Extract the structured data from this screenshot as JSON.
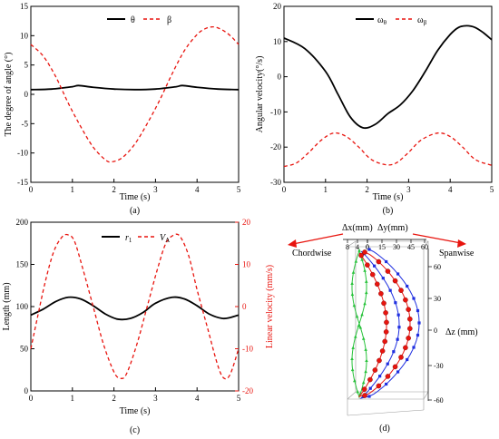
{
  "colors": {
    "black": "#000000",
    "red": "#e8140e",
    "blue": "#1f2fe0",
    "green": "#27c23a"
  },
  "panel_labels": {
    "a": "(a)",
    "b": "(b)",
    "c": "(c)",
    "d": "(d)"
  },
  "chart_data": [
    {
      "id": "a",
      "type": "line",
      "xlabel": "Time (s)",
      "ylabel": "The degree of angle (°)",
      "xlim": [
        0,
        5
      ],
      "ylim": [
        -15,
        15
      ],
      "xticks": [
        0,
        1,
        2,
        3,
        4,
        5
      ],
      "yticks": [
        -15,
        -10,
        -5,
        0,
        5,
        10,
        15
      ],
      "legend_position": "top-center",
      "series": [
        {
          "name": "θ",
          "color": "#000000",
          "dash": "solid",
          "x": [
            0,
            0.5,
            1.0,
            1.15,
            1.5,
            2.0,
            2.5,
            3.0,
            3.5,
            3.65,
            4.0,
            4.5,
            5.0
          ],
          "y": [
            0.8,
            0.9,
            1.3,
            1.5,
            1.2,
            0.9,
            0.8,
            0.9,
            1.3,
            1.5,
            1.2,
            0.9,
            0.8
          ]
        },
        {
          "name": "β",
          "color": "#e8140e",
          "dash": "dashed",
          "x": [
            0,
            0.3,
            0.6,
            0.9,
            1.2,
            1.5,
            1.8,
            1.95,
            2.2,
            2.5,
            2.8,
            3.1,
            3.4,
            3.7,
            4.0,
            4.2,
            4.4,
            4.6,
            4.8,
            5.0
          ],
          "y": [
            8.5,
            6.5,
            3.0,
            -1.5,
            -5.5,
            -9.0,
            -11.2,
            -11.5,
            -10.8,
            -8.5,
            -5.0,
            -1.0,
            3.5,
            7.5,
            10.2,
            11.2,
            11.5,
            11.0,
            10.0,
            8.5
          ]
        }
      ]
    },
    {
      "id": "b",
      "type": "line",
      "xlabel": "Time (s)",
      "ylabel": "Angular velocity(°/s)",
      "xlim": [
        0,
        5
      ],
      "ylim": [
        -30,
        20
      ],
      "xticks": [
        0,
        1,
        2,
        3,
        4,
        5
      ],
      "yticks": [
        -30,
        -20,
        -10,
        0,
        10,
        20
      ],
      "legend_position": "top-right",
      "series": [
        {
          "name": "ωθ",
          "name_main": "ω",
          "name_sub": "θ",
          "color": "#000000",
          "dash": "solid",
          "x": [
            0,
            0.5,
            1.0,
            1.3,
            1.6,
            1.9,
            2.2,
            2.5,
            2.8,
            3.1,
            3.4,
            3.7,
            4.0,
            4.2,
            4.4,
            4.6,
            4.8,
            5.0
          ],
          "y": [
            11.0,
            8.0,
            1.5,
            -5.0,
            -11.5,
            -14.5,
            -13.5,
            -10.5,
            -8.0,
            -4.0,
            1.5,
            7.5,
            12.0,
            14.0,
            14.5,
            14.0,
            12.5,
            10.5
          ]
        },
        {
          "name": "ωβ",
          "name_main": "ω",
          "name_sub": "β",
          "color": "#e8140e",
          "dash": "dashed",
          "x": [
            0,
            0.3,
            0.6,
            0.9,
            1.2,
            1.5,
            1.8,
            2.1,
            2.45,
            2.7,
            3.0,
            3.3,
            3.7,
            4.0,
            4.3,
            4.6,
            4.95,
            5.0
          ],
          "y": [
            -25.5,
            -24.5,
            -21.5,
            -18.0,
            -16.0,
            -17.0,
            -20.0,
            -23.5,
            -25.0,
            -24.5,
            -21.5,
            -18.0,
            -16.0,
            -17.0,
            -20.0,
            -23.5,
            -25.0,
            -25.0
          ]
        }
      ]
    },
    {
      "id": "c",
      "type": "line",
      "xlabel": "Time (s)",
      "ylabel": "Length (mm)",
      "ylabel_right": "Linear velocity (mm/s)",
      "xlim": [
        0,
        5
      ],
      "ylim": [
        0,
        200
      ],
      "ylim_right": [
        -20,
        20
      ],
      "xticks": [
        0,
        1,
        2,
        3,
        4,
        5
      ],
      "yticks": [
        0,
        50,
        100,
        150,
        200
      ],
      "yticks_right": [
        -20,
        -10,
        0,
        10,
        20
      ],
      "legend_position": "top-center",
      "series": [
        {
          "name": "r1",
          "name_main": "r",
          "name_sub": "1",
          "axis": "left",
          "color": "#000000",
          "dash": "solid",
          "x": [
            0,
            0.3,
            0.6,
            0.9,
            1.2,
            1.5,
            1.8,
            2.1,
            2.4,
            2.7,
            3.0,
            3.4,
            3.7,
            4.0,
            4.3,
            4.6,
            4.8,
            5.0
          ],
          "y": [
            90,
            97,
            106,
            111,
            109,
            101,
            91,
            85,
            86,
            93,
            104,
            111,
            109,
            101,
            91,
            86,
            87,
            90
          ]
        },
        {
          "name": "VA",
          "name_main": "V",
          "name_sub": "A",
          "axis": "right",
          "color": "#e8140e",
          "dash": "dashed",
          "x": [
            0,
            0.15,
            0.35,
            0.55,
            0.75,
            0.9,
            1.05,
            1.25,
            1.5,
            1.75,
            2.0,
            2.15,
            2.3,
            2.55,
            2.8,
            3.05,
            3.25,
            3.45,
            3.6,
            3.8,
            4.0,
            4.25,
            4.5,
            4.65,
            4.8,
            5.0
          ],
          "y": [
            -10,
            -3,
            6,
            13,
            16.5,
            17,
            15.5,
            9,
            0,
            -9,
            -15.5,
            -17,
            -16,
            -9,
            0,
            9,
            15,
            17,
            16.5,
            12,
            4,
            -5,
            -14,
            -17,
            -16,
            -10
          ]
        }
      ]
    },
    {
      "id": "d",
      "type": "scatter",
      "labels": {
        "chordwise": "Chordwise",
        "spanwise": "Spanwise",
        "dx": "Δx(mm)",
        "dy": "Δy(mm)",
        "dz": "Δz (mm)"
      },
      "dx_ticks": [
        "8",
        "4",
        "0"
      ],
      "dy_ticks": [
        "0",
        "15",
        "30",
        "45",
        "60"
      ],
      "dz_ticks": [
        "60",
        "30",
        "0",
        "-30",
        "-60"
      ],
      "series": [
        {
          "color": "#1f2fe0",
          "marker": "square",
          "points_note": "outer trajectory"
        },
        {
          "color": "#e8140e",
          "marker": "circle",
          "points_note": "middle trajectory"
        },
        {
          "color": "#27c23a",
          "marker": "triangle",
          "points_note": "inner trajectory"
        }
      ]
    }
  ]
}
